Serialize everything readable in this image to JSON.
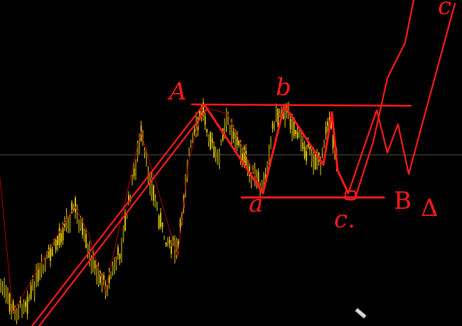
{
  "chart_data": {
    "type": "candlestick",
    "title": "",
    "grid": false,
    "axes_visible": false,
    "colors": {
      "background": "#000000",
      "candles": "#e8d000",
      "annotations": "#ff1a1a",
      "zigzag": "#b00000",
      "crosshair": "#555555"
    },
    "annotations": {
      "label_A": "A",
      "label_b": "b",
      "label_a": "a",
      "label_c1": "c.",
      "label_B": "B",
      "label_delta": "Δ",
      "label_c": "c"
    }
  },
  "cursor": {
    "icon": "pencil-icon"
  }
}
